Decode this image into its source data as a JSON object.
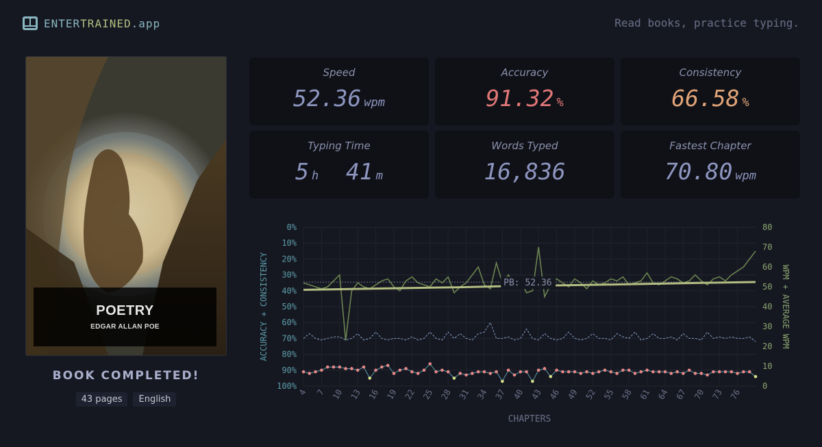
{
  "header": {
    "brand_part1": "ENTER",
    "brand_part2": "TRAINED",
    "brand_part3": ".app",
    "tagline": "Read books, practice typing."
  },
  "book": {
    "title": "POETRY",
    "author": "EDGAR ALLAN POE",
    "status": "BOOK COMPLETED!",
    "pages": "43 pages",
    "language": "English"
  },
  "stats": [
    {
      "label": "Speed",
      "value": "52.36",
      "unit": "wpm",
      "color": "#8f96c0"
    },
    {
      "label": "Accuracy",
      "value": "91.32",
      "unit": "%",
      "color": "#e27878"
    },
    {
      "label": "Consistency",
      "value": "66.58",
      "unit": "%",
      "color": "#e2a478"
    },
    {
      "label": "Typing Time",
      "value": "5",
      "unit": "h",
      "value2": "41",
      "unit2": "m",
      "color": "#8f96c0"
    },
    {
      "label": "Words Typed",
      "value": "16,836",
      "unit": "",
      "color": "#8f96c0"
    },
    {
      "label": "Fastest Chapter",
      "value": "70.80",
      "unit": "wpm",
      "color": "#8f96c0"
    }
  ],
  "colors": {
    "background": "#161821",
    "card": "#0f1117",
    "wpm": "#6b8450",
    "average_wpm": "#b4be82",
    "accuracy": "#e98989",
    "consistency": "#84a0c6",
    "axis_left": "#5b9ba8",
    "axis_right": "#8ba570"
  },
  "chart_data": {
    "type": "line",
    "xlabel": "CHAPTERS",
    "ylabel_left": "ACCURACY + CONSISTENCY",
    "ylabel_right": "WPM + AVERAGE WPM",
    "left_ticks": [
      "0%",
      "10%",
      "20%",
      "30%",
      "40%",
      "50%",
      "60%",
      "70%",
      "80%",
      "90%",
      "100%"
    ],
    "right_ticks": [
      "80",
      "70",
      "60",
      "50",
      "40",
      "30",
      "20",
      "10",
      "0"
    ],
    "x_ticks": [
      "4",
      "7",
      "10",
      "13",
      "16",
      "19",
      "22",
      "25",
      "28",
      "31",
      "34",
      "37",
      "40",
      "43",
      "46",
      "49",
      "52",
      "55",
      "58",
      "61",
      "64",
      "67",
      "70",
      "73",
      "76"
    ],
    "ylim_left": [
      0,
      100
    ],
    "ylim_right": [
      0,
      80
    ],
    "xlim": [
      4,
      79
    ],
    "pb_label": "PB: 52.36",
    "pb_value": 52.36,
    "series": [
      {
        "name": "wpm",
        "axis": "right",
        "x": [
          4,
          5,
          6,
          7,
          8,
          9,
          10,
          11,
          12,
          13,
          14,
          15,
          16,
          17,
          18,
          19,
          20,
          21,
          22,
          23,
          24,
          25,
          26,
          27,
          28,
          29,
          30,
          31,
          32,
          33,
          34,
          35,
          36,
          37,
          38,
          39,
          40,
          41,
          42,
          43,
          44,
          45,
          46,
          47,
          48,
          49,
          50,
          51,
          52,
          53,
          54,
          55,
          56,
          57,
          58,
          59,
          60,
          61,
          62,
          63,
          64,
          65,
          66,
          67,
          68,
          69,
          70,
          71,
          72,
          73,
          74,
          75,
          76,
          77,
          78,
          79
        ],
        "values": [
          52,
          51,
          50,
          49,
          50,
          53,
          56,
          23,
          48,
          52,
          50,
          49,
          51,
          53,
          54,
          50,
          48,
          53,
          55,
          52,
          51,
          50,
          54,
          52,
          55,
          47,
          50,
          52,
          56,
          60,
          51,
          49,
          62,
          52,
          56,
          51,
          54,
          47,
          48,
          70,
          45,
          51,
          54,
          52,
          50,
          54,
          52,
          49,
          53,
          51,
          52,
          54,
          53,
          55,
          51,
          52,
          53,
          57,
          52,
          51,
          53,
          55,
          54,
          52,
          53,
          56,
          53,
          51,
          54,
          55,
          53,
          56,
          58,
          60,
          64,
          68
        ]
      },
      {
        "name": "average wpm",
        "axis": "right",
        "x": [
          4,
          10,
          20,
          30,
          37,
          43,
          50,
          60,
          70,
          79
        ],
        "values": [
          48.5,
          48.8,
          49.3,
          49.8,
          50.3,
          50.6,
          50.9,
          51.4,
          52.0,
          52.4
        ]
      },
      {
        "name": "consistency",
        "axis": "left",
        "x": [
          4,
          5,
          6,
          7,
          8,
          9,
          10,
          11,
          12,
          13,
          14,
          15,
          16,
          17,
          18,
          19,
          20,
          21,
          22,
          23,
          24,
          25,
          26,
          27,
          28,
          29,
          30,
          31,
          32,
          33,
          34,
          35,
          36,
          37,
          38,
          39,
          40,
          41,
          42,
          43,
          44,
          45,
          46,
          47,
          48,
          49,
          50,
          51,
          52,
          53,
          54,
          55,
          56,
          57,
          58,
          59,
          60,
          61,
          62,
          63,
          64,
          65,
          66,
          67,
          68,
          69,
          70,
          71,
          72,
          73,
          74,
          75,
          76,
          77,
          78,
          79
        ],
        "values": [
          70,
          67,
          70,
          71,
          70,
          69,
          69,
          71,
          70,
          67,
          71,
          70,
          66,
          70,
          71,
          70,
          70,
          71,
          69,
          71,
          70,
          66,
          70,
          71,
          66,
          70,
          67,
          70,
          71,
          67,
          66,
          60,
          70,
          70,
          69,
          71,
          70,
          64,
          70,
          71,
          67,
          70,
          71,
          70,
          66,
          70,
          71,
          70,
          67,
          70,
          70,
          71,
          67,
          69,
          70,
          66,
          71,
          70,
          67,
          70,
          70,
          69,
          71,
          67,
          70,
          70,
          71,
          66,
          70,
          69,
          70,
          69,
          70,
          70,
          69,
          72
        ]
      },
      {
        "name": "accuracy",
        "axis": "left",
        "x": [
          4,
          5,
          6,
          7,
          8,
          9,
          10,
          11,
          12,
          13,
          14,
          15,
          16,
          17,
          18,
          19,
          20,
          21,
          22,
          23,
          24,
          25,
          26,
          27,
          28,
          29,
          30,
          31,
          32,
          33,
          34,
          35,
          36,
          37,
          38,
          39,
          40,
          41,
          42,
          43,
          44,
          45,
          46,
          47,
          48,
          49,
          50,
          51,
          52,
          53,
          54,
          55,
          56,
          57,
          58,
          59,
          60,
          61,
          62,
          63,
          64,
          65,
          66,
          67,
          68,
          69,
          70,
          71,
          72,
          73,
          74,
          75,
          76,
          77,
          78,
          79
        ],
        "values": [
          91,
          92,
          91,
          90,
          88,
          88,
          88,
          89,
          89,
          90,
          88,
          95,
          90,
          88,
          87,
          92,
          90,
          89,
          91,
          92,
          90,
          86,
          91,
          90,
          91,
          95,
          92,
          93,
          92,
          91,
          91,
          92,
          91,
          97,
          90,
          93,
          91,
          91,
          97,
          90,
          89,
          94,
          90,
          91,
          91,
          91,
          92,
          91,
          92,
          91,
          90,
          91,
          92,
          90,
          90,
          92,
          91,
          90,
          91,
          91,
          91,
          92,
          91,
          92,
          90,
          92,
          92,
          93,
          91,
          91,
          91,
          91,
          92,
          91,
          91,
          94
        ]
      }
    ]
  }
}
